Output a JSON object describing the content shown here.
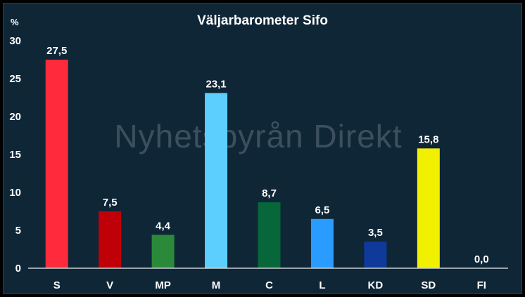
{
  "chart_data": {
    "type": "bar",
    "title": "Väljarbarometer Sifo",
    "ylabel": "%",
    "xlabel": "",
    "ylim": [
      0,
      30
    ],
    "yticks": [
      0,
      5,
      10,
      15,
      20,
      25,
      30
    ],
    "grid": false,
    "categories": [
      "S",
      "V",
      "MP",
      "M",
      "C",
      "L",
      "KD",
      "SD",
      "FI"
    ],
    "values": [
      27.5,
      7.5,
      4.4,
      23.1,
      8.7,
      6.5,
      3.5,
      15.8,
      0.0
    ],
    "data_labels": [
      "27,5",
      "7,5",
      "4,4",
      "23,1",
      "8,7",
      "6,5",
      "3,5",
      "15,8",
      "0,0"
    ],
    "colors": [
      "#ff2a3c",
      "#c00008",
      "#2a8a3a",
      "#5ccfff",
      "#07663a",
      "#2a9cff",
      "#0f3a9a",
      "#f0f000",
      "#f0f000"
    ],
    "watermark": "Nyhetsbyrån Direkt"
  },
  "theme": {
    "background": "#0f2637",
    "text": "#ffffff"
  }
}
